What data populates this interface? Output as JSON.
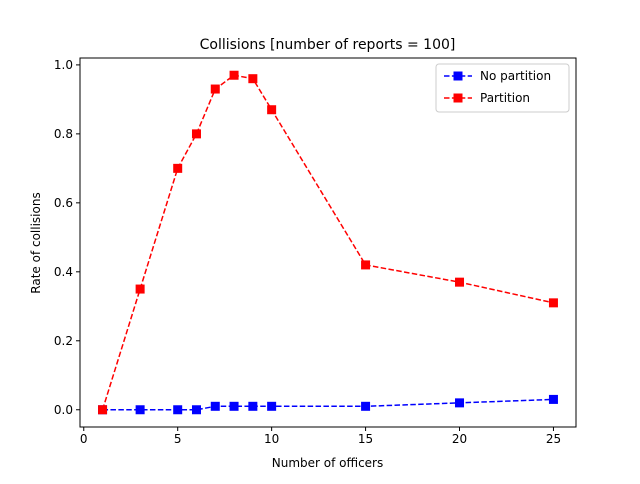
{
  "chart_data": {
    "type": "line",
    "title": "Collisions [number of reports = 100]",
    "xlabel": "Number of officers",
    "ylabel": "Rate of collisions",
    "xlim": [
      -0.2,
      26.2
    ],
    "ylim": [
      -0.05,
      1.02
    ],
    "xticks": [
      0,
      5,
      10,
      15,
      20,
      25
    ],
    "xtick_labels": [
      "0",
      "5",
      "10",
      "15",
      "20",
      "25"
    ],
    "yticks": [
      0.0,
      0.2,
      0.4,
      0.6,
      0.8,
      1.0
    ],
    "ytick_labels": [
      "0.0",
      "0.2",
      "0.4",
      "0.6",
      "0.8",
      "1.0"
    ],
    "grid": false,
    "legend_position": "top-right",
    "series": [
      {
        "name": "No partition",
        "color": "#0000ff",
        "linestyle": "dashed",
        "marker": "square",
        "x": [
          1,
          3,
          5,
          6,
          7,
          8,
          9,
          10,
          15,
          20,
          25
        ],
        "y": [
          0.0,
          0.0,
          0.0,
          0.0,
          0.01,
          0.01,
          0.01,
          0.01,
          0.01,
          0.02,
          0.03
        ]
      },
      {
        "name": "Partition",
        "color": "#ff0000",
        "linestyle": "dashed",
        "marker": "square",
        "x": [
          1,
          3,
          5,
          6,
          7,
          8,
          9,
          10,
          15,
          20,
          25
        ],
        "y": [
          0.0,
          0.35,
          0.7,
          0.8,
          0.93,
          0.97,
          0.96,
          0.87,
          0.42,
          0.37,
          0.31
        ]
      }
    ]
  }
}
